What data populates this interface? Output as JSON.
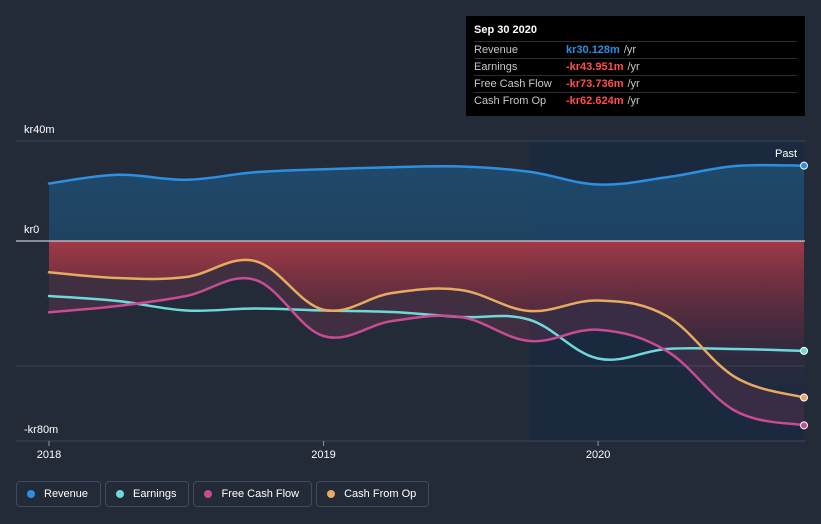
{
  "colors": {
    "revenue": "#2d8fe0",
    "earnings": "#6fd8d8",
    "free_cash_flow": "#c84b93",
    "cash_from_op": "#e6aa60",
    "revenue_fill": "#1f4a6e",
    "loss_fill": "#a83a47"
  },
  "tooltip": {
    "date": "Sep 30 2020",
    "rows": [
      {
        "name": "Revenue",
        "value": "kr30.128m",
        "unit": "/yr",
        "color": "#2d8fe0"
      },
      {
        "name": "Earnings",
        "value": "-kr43.951m",
        "unit": "/yr",
        "color": "#ff4d4d"
      },
      {
        "name": "Free Cash Flow",
        "value": "-kr73.736m",
        "unit": "/yr",
        "color": "#ff4d4d"
      },
      {
        "name": "Cash From Op",
        "value": "-kr62.624m",
        "unit": "/yr",
        "color": "#ff4d4d"
      }
    ]
  },
  "chart_data": {
    "type": "line",
    "title": "",
    "xlabel": "",
    "ylabel": "",
    "x_range": [
      2018.0,
      2020.75
    ],
    "ylim": [
      -80,
      40
    ],
    "y_ticks": [
      {
        "label": "kr40m",
        "value": 40
      },
      {
        "label": "kr0",
        "value": 0
      },
      {
        "label": "-kr80m",
        "value": -80
      }
    ],
    "x_ticks": [
      {
        "label": "2018",
        "value": 2018
      },
      {
        "label": "2019",
        "value": 2019
      },
      {
        "label": "2020",
        "value": 2020
      }
    ],
    "past_label": "Past",
    "forecast_start": 2019.75,
    "series": [
      {
        "name": "Revenue",
        "key": "revenue",
        "x": [
          2018.0,
          2018.25,
          2018.5,
          2018.75,
          2019.0,
          2019.25,
          2019.5,
          2019.75,
          2020.0,
          2020.25,
          2020.5,
          2020.75
        ],
        "values": [
          23.0,
          26.5,
          24.5,
          27.5,
          28.7,
          29.5,
          29.8,
          27.7,
          22.6,
          25.5,
          30.0,
          30.128
        ]
      },
      {
        "name": "Earnings",
        "key": "earnings",
        "x": [
          2018.0,
          2018.25,
          2018.5,
          2018.75,
          2019.0,
          2019.25,
          2019.5,
          2019.75,
          2020.0,
          2020.25,
          2020.5,
          2020.75
        ],
        "values": [
          -22.0,
          -24.0,
          -27.8,
          -27.0,
          -27.8,
          -28.4,
          -30.4,
          -31.5,
          -47.0,
          -43.2,
          -43.2,
          -43.951
        ]
      },
      {
        "name": "Free Cash Flow",
        "key": "free_cash_flow",
        "x": [
          2018.0,
          2018.25,
          2018.5,
          2018.75,
          2019.0,
          2019.25,
          2019.5,
          2019.75,
          2020.0,
          2020.25,
          2020.5,
          2020.75
        ],
        "values": [
          -28.5,
          -26.0,
          -22.0,
          -15.5,
          -38.0,
          -32.0,
          -30.4,
          -40.0,
          -35.5,
          -44.0,
          -68.0,
          -73.736
        ]
      },
      {
        "name": "Cash From Op",
        "key": "cash_from_op",
        "x": [
          2018.0,
          2018.25,
          2018.5,
          2018.75,
          2019.0,
          2019.25,
          2019.5,
          2019.75,
          2020.0,
          2020.25,
          2020.5,
          2020.75
        ],
        "values": [
          -12.5,
          -14.8,
          -14.4,
          -8.0,
          -27.5,
          -20.8,
          -19.6,
          -28.0,
          -23.8,
          -30.0,
          -54.5,
          -62.624
        ]
      }
    ]
  },
  "legend": [
    {
      "label": "Revenue",
      "color": "#2d8fe0"
    },
    {
      "label": "Earnings",
      "color": "#6fd8d8"
    },
    {
      "label": "Free Cash Flow",
      "color": "#c84b93"
    },
    {
      "label": "Cash From Op",
      "color": "#e6aa60"
    }
  ]
}
